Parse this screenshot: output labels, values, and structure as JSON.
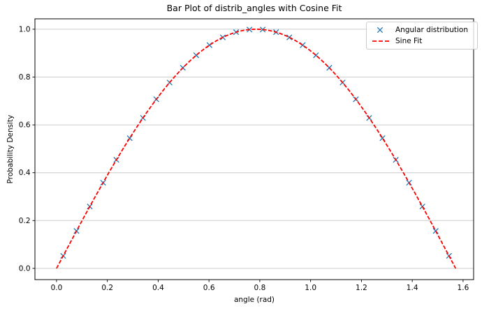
{
  "chart_data": {
    "type": "scatter",
    "title": "Bar Plot of distrib_angles with Cosine Fit",
    "xlabel": "angle (rad)",
    "ylabel": "Probability Density",
    "xlim": [
      -0.085,
      1.6415
    ],
    "ylim": [
      -0.047,
      1.0435
    ],
    "grid": "horizontal",
    "grid_color": "#cccccc",
    "spine_color": "#000000",
    "x_ticks": {
      "values": [
        0.0,
        0.2,
        0.4,
        0.6,
        0.8,
        1.0,
        1.2,
        1.4,
        1.6
      ],
      "labels": [
        "0.0",
        "0.2",
        "0.4",
        "0.6",
        "0.8",
        "1.0",
        "1.2",
        "1.4",
        "1.6"
      ]
    },
    "y_ticks": {
      "values": [
        0.0,
        0.2,
        0.4,
        0.6,
        0.8,
        1.0
      ],
      "labels": [
        "0.0",
        "0.2",
        "0.4",
        "0.6",
        "0.8",
        "1.0"
      ]
    },
    "series": [
      {
        "name": "Angular distribution",
        "type": "scatter",
        "marker": "x",
        "color": "#1f77b4",
        "x": [
          0.0262,
          0.0785,
          0.1309,
          0.1833,
          0.2356,
          0.288,
          0.3403,
          0.3927,
          0.4451,
          0.4974,
          0.5498,
          0.6021,
          0.6545,
          0.7069,
          0.7592,
          0.8116,
          0.8639,
          0.9163,
          0.9687,
          1.021,
          1.0734,
          1.1257,
          1.1781,
          1.2305,
          1.2828,
          1.3352,
          1.3875,
          1.4399,
          1.4923,
          1.5446
        ],
        "y": [
          0.0523,
          0.1564,
          0.2588,
          0.3584,
          0.454,
          0.5446,
          0.6293,
          0.7071,
          0.7771,
          0.8387,
          0.891,
          0.9336,
          0.9659,
          0.9877,
          0.9986,
          0.9986,
          0.9877,
          0.9659,
          0.9336,
          0.891,
          0.8387,
          0.7771,
          0.7071,
          0.6293,
          0.5446,
          0.454,
          0.3584,
          0.2588,
          0.1564,
          0.0523
        ]
      },
      {
        "name": "Sine Fit",
        "type": "line",
        "linestyle": "dashed",
        "color": "#ff0000",
        "formula": "y = amplitude * sin(omega * x)",
        "amplitude": 1,
        "omega": 2,
        "x_range": [
          0,
          1.5708
        ]
      }
    ],
    "legend": {
      "position": "upper right",
      "entries": [
        "Angular distribution",
        "Sine Fit"
      ]
    }
  }
}
